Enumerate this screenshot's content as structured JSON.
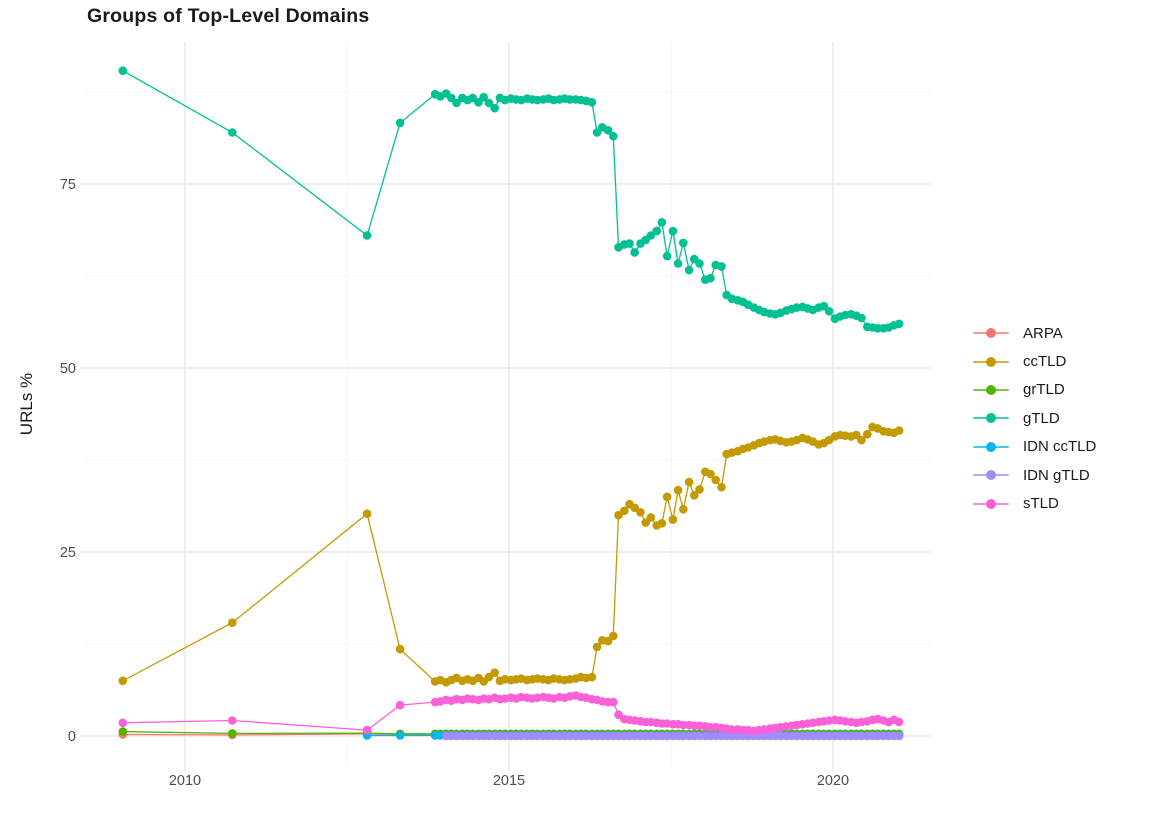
{
  "chart": {
    "title": "Groups of Top-Level Domains",
    "ylabel": "URLs %"
  },
  "chart_data": {
    "type": "line",
    "title": "Groups of Top-Level Domains",
    "xlabel": "",
    "ylabel": "URLs %",
    "x_unit": "year",
    "xlim": [
      2008.46,
      2021.51
    ],
    "ylim": [
      -4.1,
      94.3
    ],
    "x_ticks": [
      2010,
      2015,
      2020
    ],
    "x_minor_ticks": [
      2012.5,
      2017.5
    ],
    "y_ticks": [
      0,
      25,
      50,
      75
    ],
    "y_minor_ticks": [
      12.5,
      37.5,
      62.5,
      87.5
    ],
    "grid": "major+minor",
    "legend_position": "right",
    "marker": "point",
    "background": "#ffffff",
    "grid_major_color": "#e4e4e4",
    "grid_minor_color": "#f0f0f0",
    "tick_label_color": "#4d4d4d",
    "x_monthly": [
      2013.86,
      2013.94,
      2014.03,
      2014.11,
      2014.19,
      2014.28,
      2014.36,
      2014.44,
      2014.53,
      2014.61,
      2014.69,
      2014.78,
      2014.86,
      2014.94,
      2015.03,
      2015.11,
      2015.19,
      2015.28,
      2015.36,
      2015.44,
      2015.53,
      2015.61,
      2015.69,
      2015.78,
      2015.86,
      2015.94,
      2016.03,
      2016.11,
      2016.19,
      2016.28,
      2016.36,
      2016.44,
      2016.53,
      2016.61,
      2016.69,
      2016.78,
      2016.86,
      2016.94,
      2017.03,
      2017.11,
      2017.19,
      2017.28,
      2017.36,
      2017.44,
      2017.53,
      2017.61,
      2017.69,
      2017.78,
      2017.86,
      2017.94,
      2018.03,
      2018.11,
      2018.19,
      2018.28,
      2018.36,
      2018.44,
      2018.53,
      2018.61,
      2018.69,
      2018.78,
      2018.86,
      2018.94,
      2019.03,
      2019.11,
      2019.19,
      2019.28,
      2019.36,
      2019.44,
      2019.53,
      2019.61,
      2019.69,
      2019.78,
      2019.86,
      2019.94,
      2020.03,
      2020.11,
      2020.19,
      2020.28,
      2020.36,
      2020.44,
      2020.53,
      2020.61,
      2020.69,
      2020.78,
      2020.86,
      2020.94,
      2021.02
    ],
    "series": [
      {
        "name": "ARPA",
        "color": "#F8766D",
        "points": [
          [
            2009.04,
            0.2
          ],
          [
            2010.73,
            0.15
          ],
          [
            2012.81,
            0.3
          ],
          [
            2013.32,
            0.15
          ],
          [
            2013.86,
            0.1
          ],
          [
            2016.28,
            0.1
          ]
        ]
      },
      {
        "name": "ccTLD",
        "color": "#C49A02",
        "points": [
          [
            2009.04,
            7.5
          ],
          [
            2010.73,
            15.4
          ],
          [
            2012.81,
            30.2
          ],
          [
            2013.32,
            11.8
          ]
        ],
        "monthly": [
          7.4,
          7.6,
          7.3,
          7.6,
          7.9,
          7.5,
          7.7,
          7.5,
          7.9,
          7.4,
          8.0,
          8.6,
          7.5,
          7.7,
          7.6,
          7.7,
          7.8,
          7.6,
          7.7,
          7.8,
          7.7,
          7.6,
          7.8,
          7.7,
          7.6,
          7.7,
          7.8,
          8.0,
          7.9,
          8.0,
          12.1,
          13.0,
          12.9,
          13.6,
          30.0,
          30.6,
          31.5,
          31.0,
          30.4,
          29.0,
          29.7,
          28.6,
          28.9,
          32.5,
          29.4,
          33.4,
          30.8,
          34.5,
          32.7,
          33.5,
          35.9,
          35.6,
          34.8,
          33.8,
          38.3,
          38.5,
          38.7,
          39.0,
          39.2,
          39.5,
          39.8,
          40.0,
          40.2,
          40.3,
          40.1,
          39.9,
          40.0,
          40.2,
          40.5,
          40.3,
          40.0,
          39.6,
          39.8,
          40.2,
          40.7,
          40.9,
          40.8,
          40.7,
          40.9,
          40.2,
          41.0,
          42.0,
          41.8,
          41.4,
          41.3,
          41.2,
          41.5
        ]
      },
      {
        "name": "grTLD",
        "color": "#53B400",
        "points": [
          [
            2009.04,
            0.6
          ],
          [
            2010.73,
            0.35
          ],
          [
            2012.81,
            0.4
          ],
          [
            2013.32,
            0.3
          ]
        ],
        "monthly_const": 0.3
      },
      {
        "name": "gTLD",
        "color": "#00C094",
        "points": [
          [
            2009.04,
            90.4
          ],
          [
            2010.73,
            82.0
          ],
          [
            2012.81,
            68.0
          ],
          [
            2013.32,
            83.3
          ]
        ],
        "monthly": [
          87.2,
          86.9,
          87.3,
          86.7,
          86.0,
          86.7,
          86.4,
          86.7,
          86.1,
          86.8,
          86.0,
          85.3,
          86.7,
          86.4,
          86.6,
          86.5,
          86.4,
          86.6,
          86.5,
          86.4,
          86.5,
          86.6,
          86.4,
          86.5,
          86.6,
          86.5,
          86.5,
          86.4,
          86.3,
          86.1,
          82.0,
          82.7,
          82.3,
          81.5,
          66.4,
          66.8,
          66.9,
          65.7,
          66.9,
          67.4,
          68.0,
          68.6,
          69.8,
          65.2,
          68.6,
          64.2,
          67.0,
          63.3,
          64.8,
          64.2,
          62.0,
          62.2,
          64.0,
          63.8,
          59.9,
          59.4,
          59.2,
          59.0,
          58.6,
          58.2,
          57.9,
          57.6,
          57.4,
          57.3,
          57.5,
          57.8,
          58.0,
          58.2,
          58.3,
          58.1,
          57.9,
          58.2,
          58.4,
          57.7,
          56.7,
          57.0,
          57.2,
          57.3,
          57.1,
          56.8,
          55.6,
          55.5,
          55.4,
          55.4,
          55.5,
          55.8,
          56.0
        ]
      },
      {
        "name": "IDN ccTLD",
        "color": "#00B6EB",
        "points": [
          [
            2012.81,
            0.07
          ],
          [
            2013.32,
            0.07
          ]
        ],
        "monthly_const": 0.07
      },
      {
        "name": "IDN gTLD",
        "color": "#A58AFF",
        "points": [],
        "monthly_const": 0.0,
        "monthly_start": 2014.0
      },
      {
        "name": "sTLD",
        "color": "#FB61D7",
        "points": [
          [
            2009.04,
            1.8
          ],
          [
            2010.73,
            2.1
          ],
          [
            2012.81,
            0.8
          ],
          [
            2013.32,
            4.2
          ]
        ],
        "monthly": [
          4.6,
          4.7,
          4.9,
          4.8,
          5.0,
          4.9,
          5.1,
          5.0,
          4.9,
          5.1,
          5.0,
          5.2,
          5.0,
          5.1,
          5.2,
          5.1,
          5.3,
          5.2,
          5.1,
          5.2,
          5.3,
          5.2,
          5.1,
          5.3,
          5.2,
          5.4,
          5.5,
          5.3,
          5.2,
          5.0,
          4.9,
          4.7,
          4.6,
          4.6,
          2.9,
          2.3,
          2.2,
          2.1,
          2.0,
          1.9,
          1.9,
          1.8,
          1.7,
          1.7,
          1.6,
          1.6,
          1.5,
          1.5,
          1.4,
          1.4,
          1.3,
          1.2,
          1.2,
          1.1,
          1.0,
          0.9,
          0.9,
          0.8,
          0.8,
          0.7,
          0.8,
          0.9,
          1.0,
          1.1,
          1.2,
          1.3,
          1.4,
          1.5,
          1.6,
          1.7,
          1.8,
          1.9,
          2.0,
          2.1,
          2.2,
          2.1,
          2.0,
          1.9,
          1.8,
          1.9,
          2.0,
          2.2,
          2.3,
          2.1,
          1.9,
          2.2,
          1.9
        ]
      }
    ]
  }
}
